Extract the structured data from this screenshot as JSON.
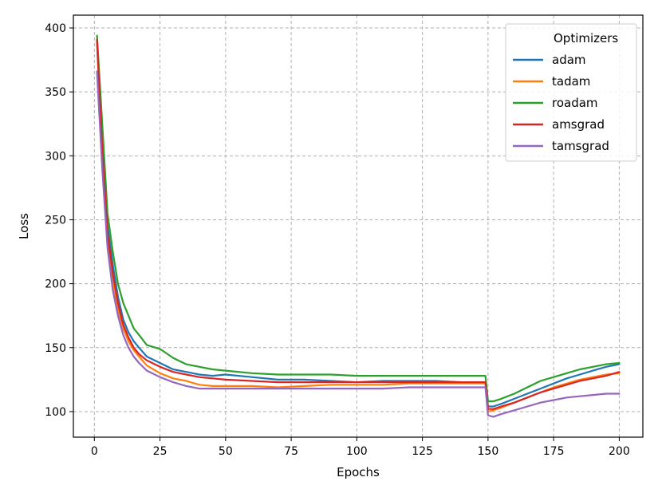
{
  "chart_data": {
    "type": "line",
    "title": "",
    "xlabel": "Epochs",
    "ylabel": "Loss",
    "xlim": [
      -8,
      209
    ],
    "ylim": [
      80,
      410
    ],
    "xticks": [
      0,
      25,
      50,
      75,
      100,
      125,
      150,
      175,
      200
    ],
    "yticks": [
      100,
      150,
      200,
      250,
      300,
      350,
      400
    ],
    "xtick_labels": [
      "0",
      "25",
      "50",
      "75",
      "100",
      "125",
      "150",
      "175",
      "200"
    ],
    "ytick_labels": [
      "100",
      "150",
      "200",
      "250",
      "300",
      "350",
      "400"
    ],
    "grid": true,
    "legend": {
      "title": "Optimizers",
      "placement": "top-right"
    },
    "x": [
      1,
      3,
      5,
      7,
      9,
      11,
      13,
      15,
      17,
      20,
      25,
      30,
      35,
      40,
      45,
      50,
      60,
      70,
      80,
      90,
      100,
      110,
      120,
      130,
      140,
      149,
      150,
      152,
      155,
      160,
      165,
      170,
      175,
      180,
      185,
      190,
      195,
      200
    ],
    "series": [
      {
        "name": "adam",
        "color": "#1f77b4",
        "values": [
          390,
          310,
          245,
          215,
          190,
          172,
          162,
          155,
          150,
          143,
          138,
          133,
          131,
          129,
          128,
          129,
          127,
          125,
          125,
          124,
          123,
          124,
          124,
          124,
          123,
          123,
          104,
          104,
          106,
          110,
          114,
          118,
          122,
          126,
          129,
          132,
          135,
          137
        ]
      },
      {
        "name": "tadam",
        "color": "#ff7f0e",
        "values": [
          388,
          300,
          235,
          200,
          180,
          165,
          155,
          148,
          143,
          136,
          130,
          126,
          124,
          121,
          120,
          120,
          120,
          119,
          120,
          121,
          121,
          121,
          122,
          122,
          122,
          122,
          100,
          101,
          103,
          107,
          111,
          115,
          119,
          122,
          125,
          127,
          129,
          130
        ]
      },
      {
        "name": "roadam",
        "color": "#2ca02c",
        "values": [
          394,
          325,
          255,
          225,
          200,
          185,
          175,
          165,
          160,
          152,
          149,
          142,
          137,
          135,
          133,
          132,
          130,
          129,
          129,
          129,
          128,
          128,
          128,
          128,
          128,
          128,
          108,
          108,
          110,
          114,
          119,
          124,
          127,
          130,
          133,
          135,
          137,
          138
        ]
      },
      {
        "name": "amsgrad",
        "color": "#d62728",
        "values": [
          391,
          305,
          240,
          208,
          185,
          168,
          158,
          150,
          145,
          140,
          135,
          131,
          129,
          127,
          126,
          125,
          124,
          123,
          123,
          123,
          123,
          123,
          123,
          123,
          123,
          123,
          102,
          102,
          104,
          107,
          111,
          115,
          118,
          121,
          124,
          126,
          128,
          131
        ]
      },
      {
        "name": "tamsgrad",
        "color": "#9467bd",
        "values": [
          366,
          290,
          228,
          195,
          175,
          160,
          150,
          143,
          138,
          132,
          127,
          123,
          120,
          118,
          118,
          118,
          118,
          118,
          118,
          118,
          118,
          118,
          119,
          119,
          119,
          119,
          97,
          96,
          98,
          101,
          104,
          107,
          109,
          111,
          112,
          113,
          114,
          114
        ]
      }
    ]
  }
}
